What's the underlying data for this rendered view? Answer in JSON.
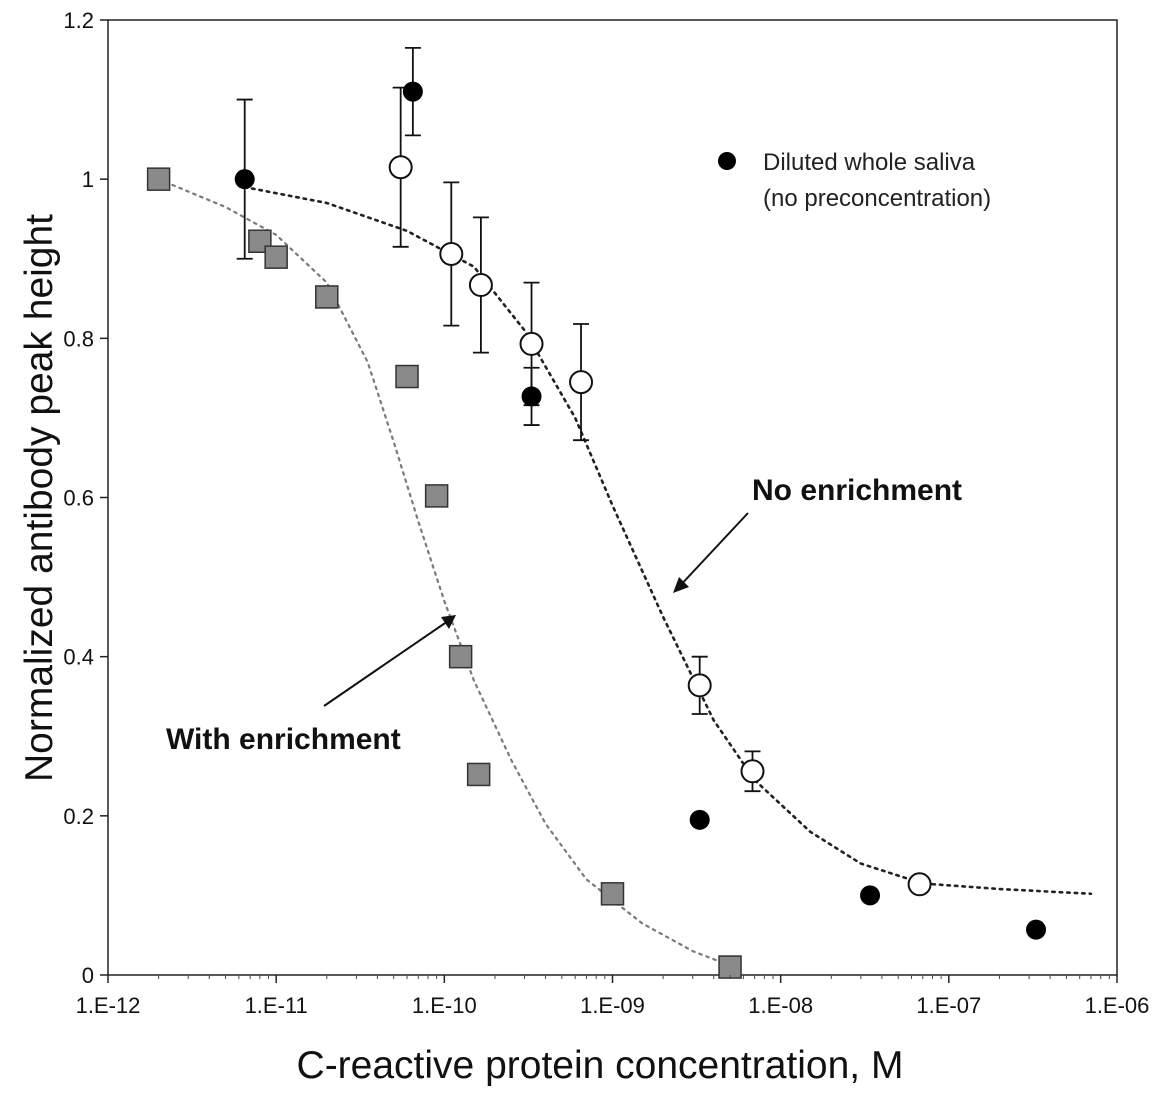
{
  "chart_data": {
    "type": "scatter",
    "title": "",
    "xlabel": "C-reactive protein concentration, M",
    "ylabel": "Normalized antibody peak height",
    "xscale": "log",
    "xlim": [
      1e-12,
      1e-06
    ],
    "ylim": [
      0,
      1.2
    ],
    "x_ticks": [
      1e-12,
      1e-11,
      1e-10,
      1e-09,
      1e-08,
      1e-07,
      1e-06
    ],
    "x_tick_labels": [
      "1.E-12",
      "1.E-11",
      "1.E-10",
      "1.E-09",
      "1.E-08",
      "1.E-07",
      "1.E-06"
    ],
    "y_ticks": [
      0,
      0.2,
      0.4,
      0.6,
      0.8,
      1,
      1.2
    ],
    "y_tick_labels": [
      "0",
      "0.2",
      "0.4",
      "0.6",
      "0.8",
      "1",
      "1.2"
    ],
    "grid": false,
    "legend": {
      "position": "top-right",
      "entries": [
        {
          "marker": "filled-circle",
          "lines": [
            "Diluted whole saliva",
            "(no preconcentration)"
          ]
        }
      ]
    },
    "annotations": [
      {
        "text": "No enrichment",
        "points_to": "open-circle fit curve"
      },
      {
        "text": "With enrichment",
        "points_to": "square fit curve"
      }
    ],
    "series": [
      {
        "marker": "filled-circle",
        "color": "#000000",
        "points": [
          {
            "x": 6.5e-12,
            "y": 1.0,
            "err_up": 0.1,
            "err_down": 0.1
          },
          {
            "x": 6.5e-11,
            "y": 1.11,
            "err_up": 0.055,
            "err_down": 0.055
          },
          {
            "x": 3.3e-10,
            "y": 0.727,
            "err_up": 0.036,
            "err_down": 0.036
          },
          {
            "x": 3.3e-09,
            "y": 0.195
          },
          {
            "x": 3.4e-08,
            "y": 0.1
          },
          {
            "x": 3.3e-07,
            "y": 0.057
          }
        ]
      },
      {
        "marker": "open-circle",
        "color": "#000000",
        "points": [
          {
            "x": 5.5e-11,
            "y": 1.015,
            "err_up": 0.1,
            "err_down": 0.1
          },
          {
            "x": 1.1e-10,
            "y": 0.906,
            "err_up": 0.09,
            "err_down": 0.09
          },
          {
            "x": 1.65e-10,
            "y": 0.867,
            "err_up": 0.085,
            "err_down": 0.085
          },
          {
            "x": 3.3e-10,
            "y": 0.793,
            "err_up": 0.077,
            "err_down": 0.077
          },
          {
            "x": 6.5e-10,
            "y": 0.745,
            "err_up": 0.073,
            "err_down": 0.073
          },
          {
            "x": 3.3e-09,
            "y": 0.364,
            "err_up": 0.036,
            "err_down": 0.036
          },
          {
            "x": 6.8e-09,
            "y": 0.256,
            "err_up": 0.025,
            "err_down": 0.025
          },
          {
            "x": 6.7e-08,
            "y": 0.114
          }
        ],
        "fit_curve": [
          {
            "x": 6.5e-12,
            "y": 0.99
          },
          {
            "x": 2e-11,
            "y": 0.97
          },
          {
            "x": 6e-11,
            "y": 0.935
          },
          {
            "x": 1.5e-10,
            "y": 0.89
          },
          {
            "x": 3e-10,
            "y": 0.81
          },
          {
            "x": 6e-10,
            "y": 0.7
          },
          {
            "x": 1e-09,
            "y": 0.59
          },
          {
            "x": 2e-09,
            "y": 0.45
          },
          {
            "x": 4e-09,
            "y": 0.32
          },
          {
            "x": 7e-09,
            "y": 0.245
          },
          {
            "x": 1.5e-08,
            "y": 0.18
          },
          {
            "x": 3e-08,
            "y": 0.14
          },
          {
            "x": 7e-08,
            "y": 0.115
          },
          {
            "x": 2e-07,
            "y": 0.108
          },
          {
            "x": 7e-07,
            "y": 0.102
          }
        ]
      },
      {
        "marker": "gray-square",
        "color": "#8a8a8a",
        "points": [
          {
            "x": 2e-12,
            "y": 1.0
          },
          {
            "x": 8e-12,
            "y": 0.922
          },
          {
            "x": 1e-11,
            "y": 0.902
          },
          {
            "x": 2e-11,
            "y": 0.852
          },
          {
            "x": 6e-11,
            "y": 0.752
          },
          {
            "x": 9e-11,
            "y": 0.602
          },
          {
            "x": 1.25e-10,
            "y": 0.4
          },
          {
            "x": 1.6e-10,
            "y": 0.252
          },
          {
            "x": 1e-09,
            "y": 0.102
          },
          {
            "x": 5e-09,
            "y": 0.01
          }
        ],
        "fit_curve": [
          {
            "x": 2e-12,
            "y": 1.0
          },
          {
            "x": 5e-12,
            "y": 0.965
          },
          {
            "x": 1e-11,
            "y": 0.93
          },
          {
            "x": 2e-11,
            "y": 0.87
          },
          {
            "x": 3.5e-11,
            "y": 0.77
          },
          {
            "x": 5e-11,
            "y": 0.67
          },
          {
            "x": 7e-11,
            "y": 0.57
          },
          {
            "x": 1e-10,
            "y": 0.47
          },
          {
            "x": 1.5e-10,
            "y": 0.37
          },
          {
            "x": 2.5e-10,
            "y": 0.27
          },
          {
            "x": 4e-10,
            "y": 0.19
          },
          {
            "x": 7e-10,
            "y": 0.12
          },
          {
            "x": 1.5e-09,
            "y": 0.065
          },
          {
            "x": 3e-09,
            "y": 0.03
          },
          {
            "x": 5e-09,
            "y": 0.012
          }
        ]
      }
    ]
  }
}
